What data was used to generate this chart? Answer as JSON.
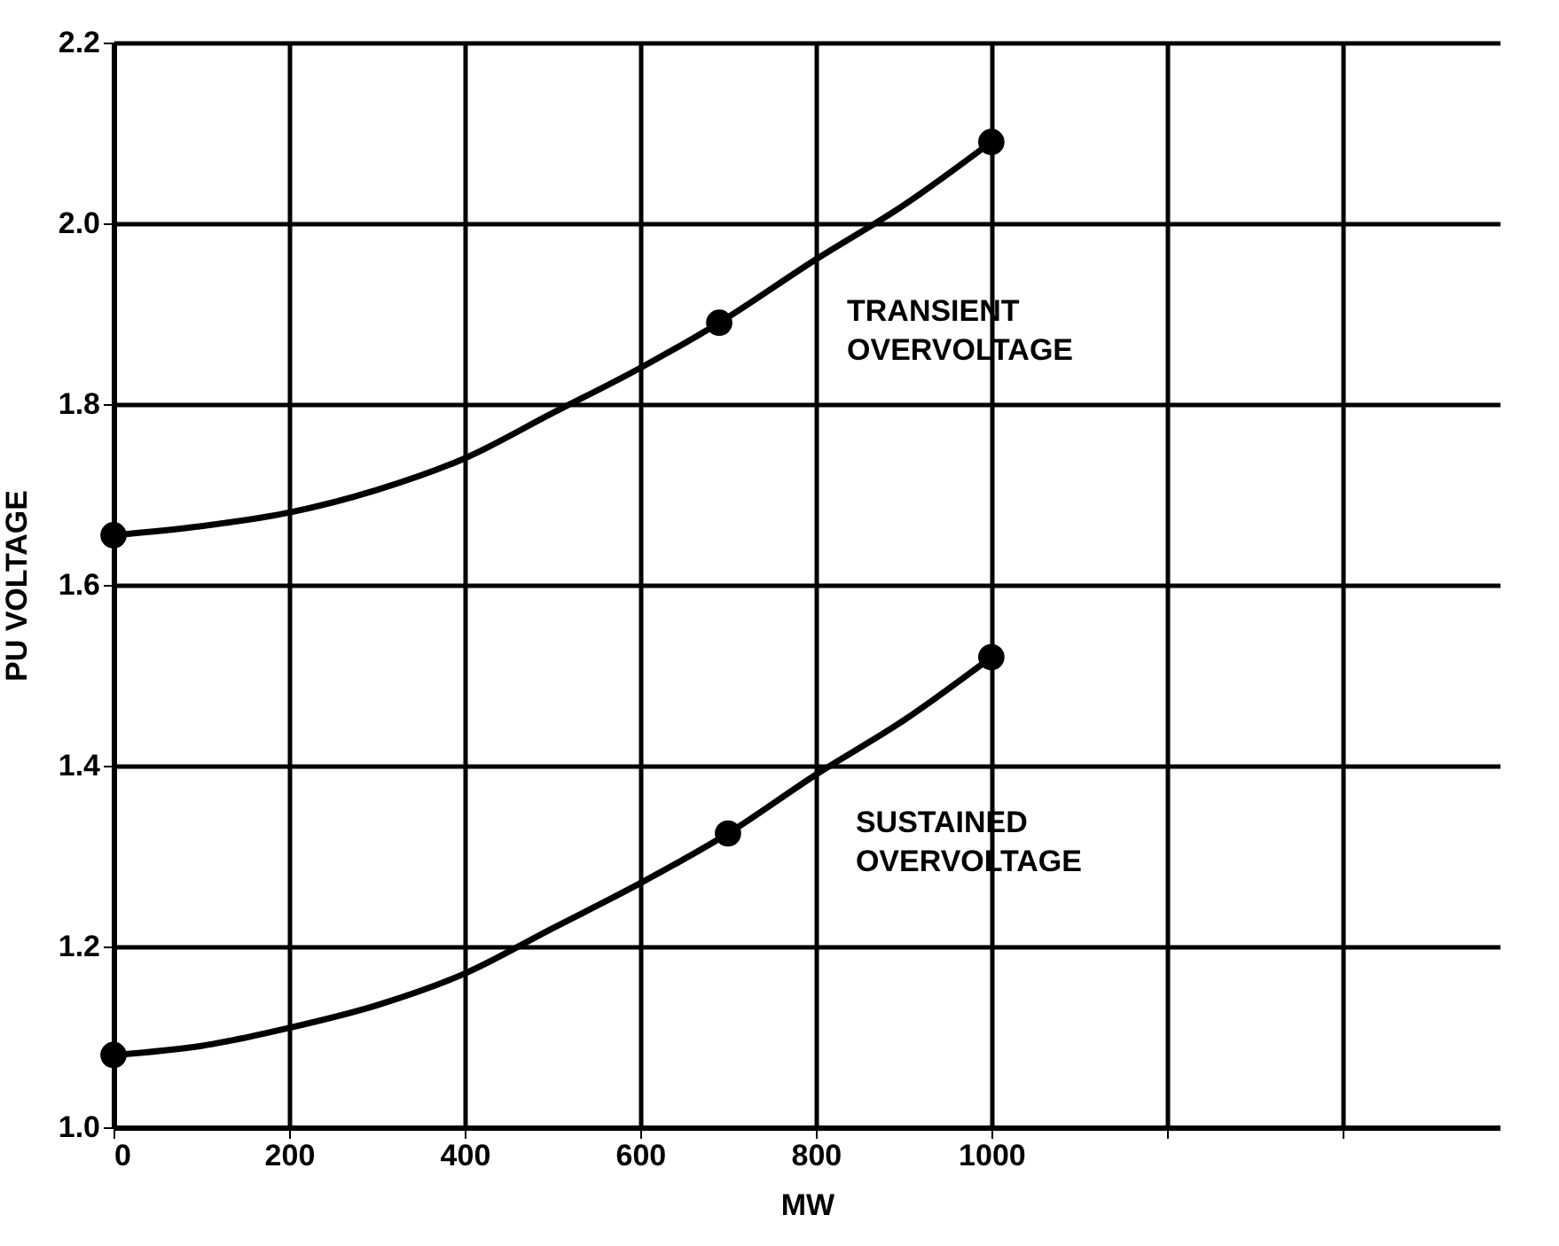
{
  "chart_data": {
    "type": "line",
    "xlabel": "MW",
    "ylabel": "PU VOLTAGE",
    "xlim": [
      0,
      1580
    ],
    "xticks": [
      0,
      200,
      400,
      600,
      800,
      1000,
      {
        "value": 1200,
        "label": null
      },
      {
        "value": 1400,
        "label": null
      }
    ],
    "ylim": [
      1.0,
      2.2
    ],
    "yticks": [
      {
        "value": 1.0,
        "label": "1.0"
      },
      1.2,
      1.4,
      1.6,
      1.8,
      {
        "value": 2.0,
        "label": "2.0"
      },
      2.2
    ],
    "grid": true,
    "line_style": "solid",
    "series": [
      {
        "color": "#000000",
        "marker": "none",
        "x": [
          0,
          100,
          200,
          300,
          400,
          500,
          600,
          690,
          800,
          900,
          1000
        ],
        "values": [
          1.655,
          1.665,
          1.68,
          1.705,
          1.74,
          1.79,
          1.84,
          1.89,
          1.96,
          2.02,
          2.09
        ]
      },
      {
        "type": "scatter",
        "color": "#000000",
        "marker": "circle",
        "x": [
          0,
          690,
          1000
        ],
        "values": [
          1.655,
          1.89,
          2.09
        ]
      },
      {
        "color": "#000000",
        "marker": "none",
        "x": [
          0,
          100,
          200,
          300,
          400,
          500,
          600,
          700,
          800,
          900,
          1000
        ],
        "values": [
          1.08,
          1.09,
          1.11,
          1.135,
          1.17,
          1.22,
          1.27,
          1.325,
          1.39,
          1.45,
          1.52
        ]
      },
      {
        "type": "scatter",
        "color": "#000000",
        "marker": "circle",
        "x": [
          0,
          700,
          1000
        ],
        "values": [
          1.08,
          1.325,
          1.52
        ]
      }
    ],
    "annotations": [
      "TRANSIENT OVERVOLTAGE",
      "SUSTAINED OVERVOLTAGE"
    ]
  }
}
